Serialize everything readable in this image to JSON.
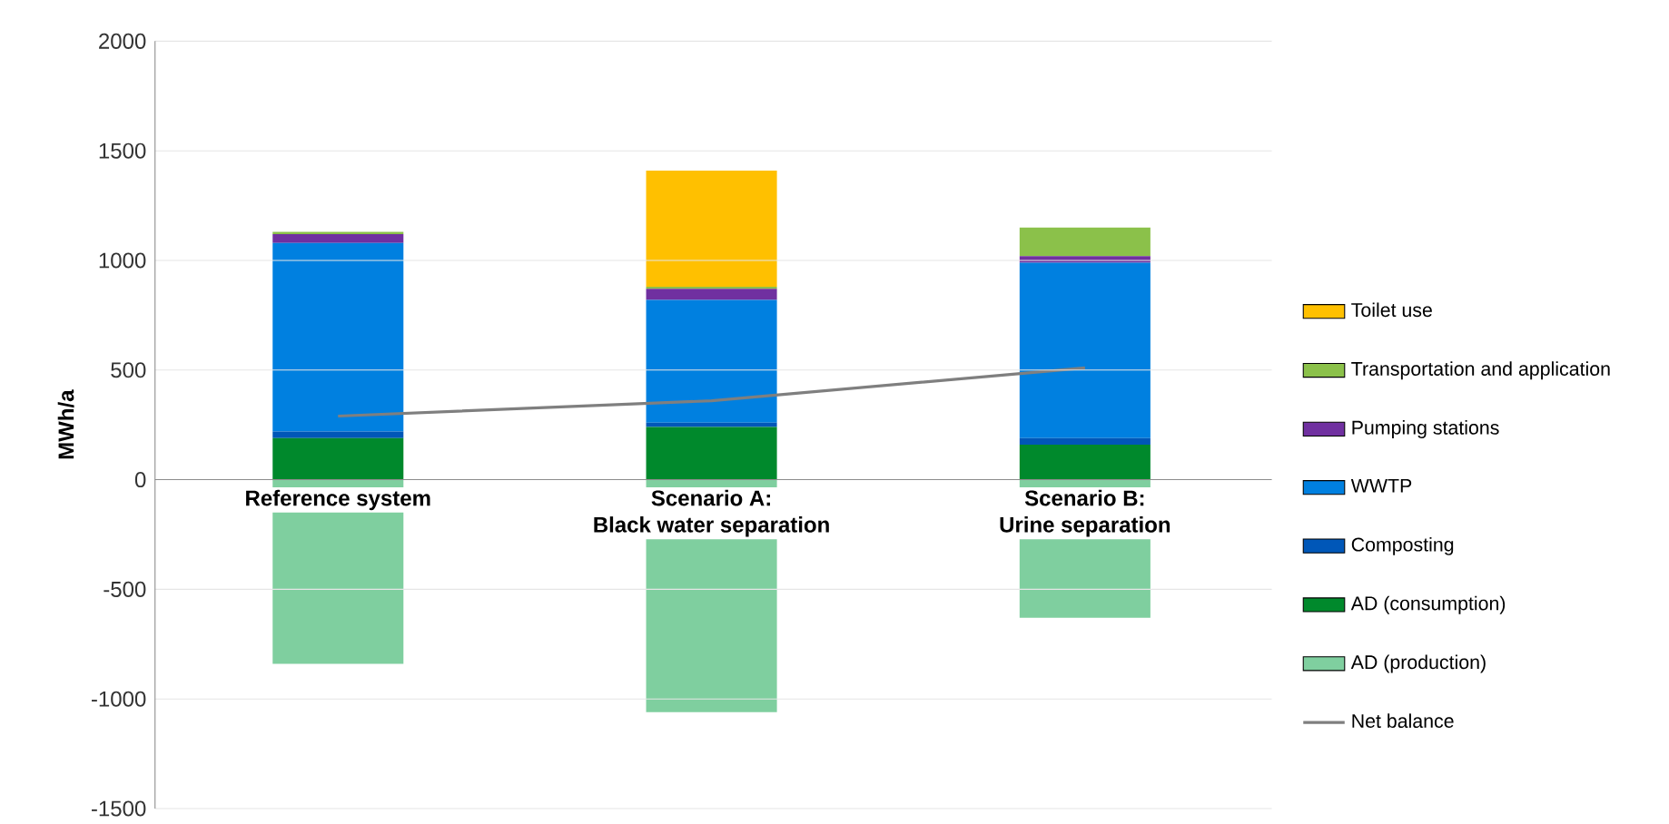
{
  "chart_data": {
    "type": "bar",
    "stacked": true,
    "ylabel": "MWh/a",
    "categories": [
      "Reference system",
      "Scenario A:\nBlack water separation",
      "Scenario B:\nUrine separation"
    ],
    "ylim": [
      -1500,
      2000
    ],
    "yticks": [
      -1500,
      -1000,
      -500,
      0,
      500,
      1000,
      1500,
      2000
    ],
    "grid": "y",
    "legend": "right",
    "series": [
      {
        "name": "AD (production)",
        "color": "#7fcf9f",
        "values": [
          -840,
          -1060,
          -630
        ]
      },
      {
        "name": "AD (consumption)",
        "color": "#00892c",
        "values": [
          190,
          240,
          160
        ]
      },
      {
        "name": "Composting",
        "color": "#0057b8",
        "values": [
          30,
          20,
          30
        ]
      },
      {
        "name": "WWTP",
        "color": "#0080e0",
        "values": [
          860,
          560,
          800
        ]
      },
      {
        "name": "Pumping stations",
        "color": "#7030a0",
        "values": [
          40,
          50,
          30
        ]
      },
      {
        "name": "Transportation and application",
        "color": "#8bc14a",
        "values": [
          10,
          10,
          130
        ]
      },
      {
        "name": "Toilet use",
        "color": "#ffc000",
        "values": [
          0,
          530,
          0
        ]
      },
      {
        "name": "Net balance",
        "type": "line",
        "color": "#7f7f7f",
        "values": [
          290,
          360,
          510
        ]
      }
    ]
  }
}
